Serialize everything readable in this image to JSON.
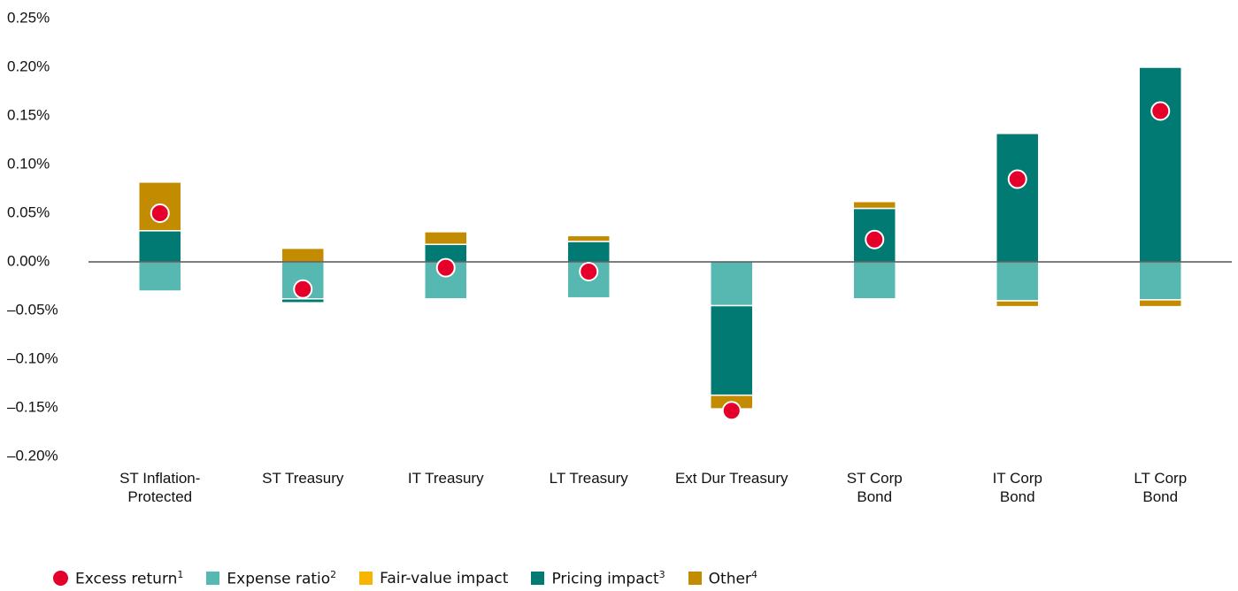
{
  "chart_data": {
    "type": "stacked_bar",
    "categories": [
      "ST Inflation-\nProtected",
      "ST Treasury",
      "IT Treasury",
      "LT Treasury",
      "Ext Dur Treasury",
      "ST Corp\nBond",
      "IT Corp\nBond",
      "LT Corp\nBond"
    ],
    "series": [
      {
        "name": "Excess return",
        "footnote": "1",
        "type": "scatter",
        "color": "#e4002b",
        "values": [
          0.05,
          -0.028,
          -0.006,
          -0.01,
          -0.153,
          0.023,
          0.085,
          0.155
        ]
      },
      {
        "name": "Expense ratio",
        "footnote": "2",
        "color": "#56b8b1",
        "values": [
          -0.03,
          -0.038,
          -0.038,
          -0.037,
          -0.045,
          -0.038,
          -0.04,
          -0.039
        ]
      },
      {
        "name": "Fair-value impact",
        "color": "#f7b500",
        "values": [
          0,
          0,
          0,
          0,
          0,
          0,
          0,
          0
        ]
      },
      {
        "name": "Pricing impact",
        "footnote": "3",
        "color": "#007a72",
        "values": [
          0.032,
          -0.004,
          0.018,
          0.021,
          -0.092,
          0.055,
          0.132,
          0.2
        ]
      },
      {
        "name": "Other",
        "footnote": "4",
        "color": "#c38b00",
        "values": [
          0.05,
          0.014,
          0.013,
          0.006,
          -0.014,
          0.007,
          -0.006,
          -0.007
        ]
      }
    ],
    "ylim": [
      -0.2,
      0.25
    ],
    "yticks": [
      {
        "value": 0.25,
        "label": "0.25%"
      },
      {
        "value": 0.2,
        "label": "0.20%"
      },
      {
        "value": 0.15,
        "label": "0.15%"
      },
      {
        "value": 0.1,
        "label": "0.10%"
      },
      {
        "value": 0.05,
        "label": "0.05%"
      },
      {
        "value": 0,
        "label": "0.00%"
      },
      {
        "value": -0.05,
        "label": "–0.05%"
      },
      {
        "value": -0.1,
        "label": "–0.10%"
      },
      {
        "value": -0.15,
        "label": "–0.15%"
      },
      {
        "value": -0.2,
        "label": "–0.20%"
      }
    ],
    "grid": false
  }
}
